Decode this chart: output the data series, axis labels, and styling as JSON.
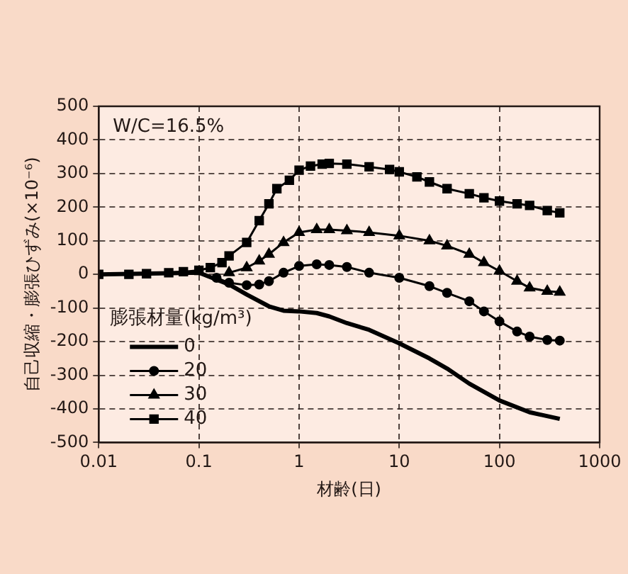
{
  "chart_data": {
    "type": "line",
    "xlabel": "材齢(日)",
    "ylabel": "自己収縮・膨張ひずみ(×10⁻⁶)",
    "legend_title": "膨張材量(kg/m³)",
    "annotations": [
      "W/C=16.5%"
    ],
    "log": "x",
    "xlim": [
      0.01,
      1000
    ],
    "xticks": [
      0.01,
      0.1,
      1,
      10,
      100,
      1000
    ],
    "ylim": [
      -500,
      500
    ],
    "yticks": [
      -500,
      -400,
      -300,
      -200,
      -100,
      0,
      100,
      200,
      300,
      400,
      500
    ],
    "grid": true,
    "legend": "bottom left",
    "series": [
      {
        "name": "0",
        "color": "#000000",
        "marker": "none",
        "x": [
          0.01,
          0.1,
          0.2,
          0.3,
          0.5,
          0.7,
          1,
          1.5,
          2,
          3,
          5,
          10,
          20,
          30,
          50,
          100,
          200,
          400
        ],
        "values": [
          0,
          5,
          -30,
          -60,
          -95,
          -108,
          -110,
          -115,
          -125,
          -145,
          -165,
          -205,
          -250,
          -280,
          -325,
          -375,
          -410,
          -430
        ]
      },
      {
        "name": "20",
        "color": "#000000",
        "marker": "circle",
        "x": [
          0.15,
          0.2,
          0.3,
          0.4,
          0.5,
          0.7,
          1,
          1.5,
          2,
          3,
          5,
          10,
          20,
          30,
          50,
          70,
          100,
          150,
          200,
          300,
          400
        ],
        "values": [
          -10,
          -25,
          -32,
          -30,
          -20,
          5,
          25,
          30,
          28,
          22,
          5,
          -10,
          -35,
          -55,
          -80,
          -110,
          -140,
          -170,
          -185,
          -195,
          -197
        ]
      },
      {
        "name": "30",
        "color": "#000000",
        "marker": "triangle",
        "x": [
          0.2,
          0.3,
          0.4,
          0.5,
          0.7,
          1,
          1.5,
          2,
          3,
          5,
          10,
          20,
          30,
          50,
          70,
          100,
          150,
          200,
          300,
          400
        ],
        "values": [
          5,
          20,
          40,
          60,
          95,
          125,
          133,
          133,
          130,
          125,
          115,
          100,
          85,
          60,
          35,
          10,
          -20,
          -40,
          -50,
          -53
        ]
      },
      {
        "name": "40",
        "color": "#000000",
        "marker": "square",
        "x": [
          0.01,
          0.02,
          0.03,
          0.05,
          0.07,
          0.1,
          0.13,
          0.17,
          0.2,
          0.3,
          0.4,
          0.5,
          0.6,
          0.8,
          1,
          1.3,
          1.7,
          2,
          3,
          5,
          8,
          10,
          15,
          20,
          30,
          50,
          70,
          100,
          150,
          200,
          300,
          400
        ],
        "values": [
          0,
          0,
          2,
          5,
          8,
          12,
          20,
          35,
          55,
          95,
          160,
          210,
          255,
          280,
          310,
          322,
          328,
          330,
          328,
          320,
          312,
          305,
          290,
          275,
          255,
          240,
          228,
          218,
          210,
          205,
          190,
          183
        ]
      }
    ]
  }
}
